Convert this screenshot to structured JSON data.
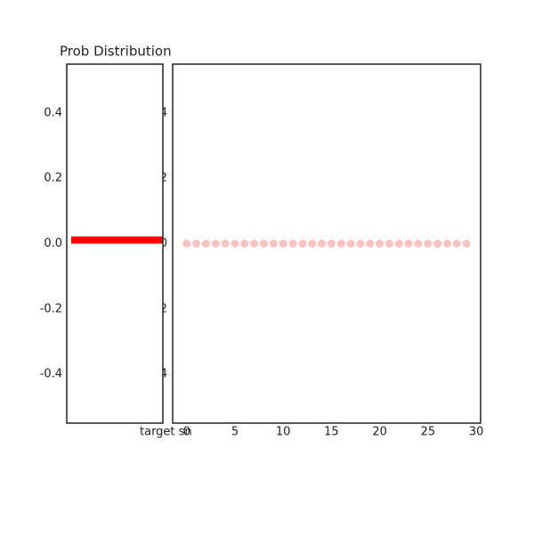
{
  "chart_data": [
    {
      "type": "barh",
      "title": "Prob Distribution",
      "xlabel": "target sn",
      "y": [
        0
      ],
      "values": [
        1
      ],
      "color": "#ff0000",
      "xlim": [
        0,
        1
      ],
      "ylim": [
        -0.55,
        0.55
      ],
      "yticks": [
        -0.4,
        -0.2,
        {
          "value": 0,
          "label": "0.0"
        },
        0.2,
        0.4
      ]
    },
    {
      "type": "scatter",
      "color": "#ffc0c0",
      "x": [
        0,
        1,
        2,
        3,
        4,
        5,
        6,
        7,
        8,
        9,
        10,
        11,
        12,
        13,
        14,
        15,
        16,
        17,
        18,
        19,
        20,
        21,
        22,
        23,
        24,
        25,
        26,
        27,
        28,
        29
      ],
      "values": [
        0,
        0,
        0,
        0,
        0,
        0,
        0,
        0,
        0,
        0,
        0,
        0,
        0,
        0,
        0,
        0,
        0,
        0,
        0,
        0,
        0,
        0,
        0,
        0,
        0,
        0,
        0,
        0,
        0,
        0
      ],
      "xlim": [
        -1.45,
        30.45
      ],
      "ylim": [
        -0.55,
        0.55
      ],
      "xticks": [
        0,
        5,
        10,
        15,
        20,
        25,
        30
      ],
      "yticks": [
        -0.4,
        -0.2,
        {
          "value": 0,
          "label": "0.0"
        },
        0.2,
        0.4
      ]
    }
  ]
}
